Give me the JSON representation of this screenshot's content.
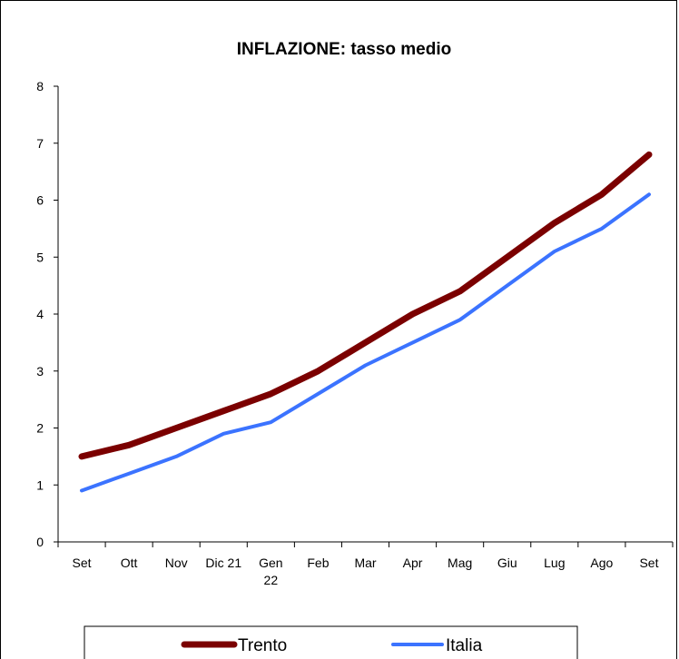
{
  "chart_data": {
    "type": "line",
    "title": "INFLAZIONE: tasso medio",
    "xlabel": "",
    "ylabel": "",
    "categories": [
      [
        "Set"
      ],
      [
        "Ott"
      ],
      [
        "Nov"
      ],
      [
        "Dic 21"
      ],
      [
        "Gen",
        "22"
      ],
      [
        "Feb"
      ],
      [
        "Mar"
      ],
      [
        "Apr"
      ],
      [
        "Mag"
      ],
      [
        "Giu"
      ],
      [
        "Lug"
      ],
      [
        "Ago"
      ],
      [
        "Set"
      ]
    ],
    "ylim": [
      0,
      8
    ],
    "yticks": [
      "0",
      "1",
      "2",
      "3",
      "4",
      "5",
      "6",
      "7",
      "8"
    ],
    "grid": false,
    "legend_position": "bottom",
    "series": [
      {
        "name": "Trento",
        "color": "#7B0000",
        "values": [
          1.5,
          1.7,
          2.0,
          2.3,
          2.6,
          3.0,
          3.5,
          4.0,
          4.4,
          5.0,
          5.6,
          6.1,
          6.8
        ]
      },
      {
        "name": "Italia",
        "color": "#3B73FF",
        "values": [
          0.9,
          1.2,
          1.5,
          1.9,
          2.1,
          2.6,
          3.1,
          3.5,
          3.9,
          4.5,
          5.1,
          5.5,
          6.1
        ]
      }
    ]
  }
}
